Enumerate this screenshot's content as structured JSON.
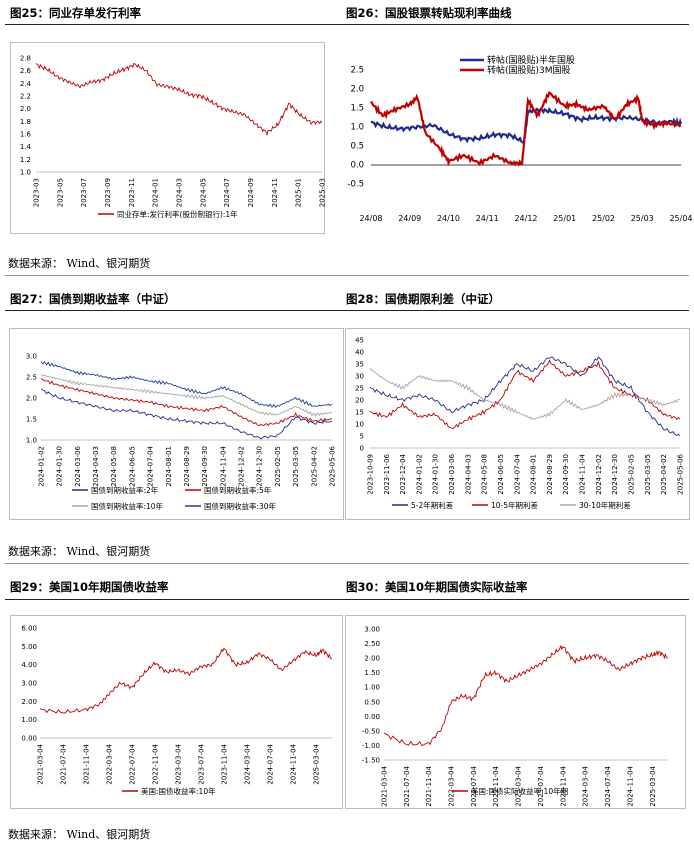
{
  "charts": [
    {
      "id": "c25",
      "title": "图25：同业存单发行利率",
      "chart_data": {
        "type": "line",
        "title": "图25：同业存单发行利率",
        "xlabel": "",
        "ylabel": "",
        "ylim": [
          1.0,
          2.8
        ],
        "yticks": [
          "2.8",
          "2.6",
          "2.4",
          "2.2",
          "2.0",
          "1.8",
          "1.6",
          "1.4",
          "1.2",
          "1.0"
        ],
        "xticks": [
          "2023-03",
          "2023-05",
          "2023-07",
          "2023-09",
          "2023-11",
          "2024-01",
          "2024-03",
          "2024-05",
          "2024-07",
          "2024-09",
          "2024-11",
          "2025-01",
          "2025-03"
        ],
        "x_index_range": [
          0,
          26
        ],
        "series": [
          {
            "name": "同业存单:发行利率(股份制银行):1年",
            "color": "#c00000",
            "x": [
              0,
              1,
              2,
              3,
              4,
              5,
              6,
              7,
              8,
              9,
              10,
              11,
              12,
              13,
              14,
              15,
              16,
              17,
              18,
              19,
              20,
              21,
              22,
              23,
              24,
              25,
              26
            ],
            "values": [
              2.7,
              2.62,
              2.5,
              2.42,
              2.35,
              2.42,
              2.45,
              2.55,
              2.62,
              2.7,
              2.6,
              2.38,
              2.35,
              2.3,
              2.22,
              2.2,
              2.1,
              2.0,
              1.95,
              1.9,
              1.75,
              1.62,
              1.75,
              2.08,
              1.9,
              1.78,
              1.79
            ]
          }
        ],
        "legend": "bottom"
      }
    },
    {
      "id": "c26",
      "title": "图26：国股银票转贴现利率曲线",
      "chart_data": {
        "type": "line",
        "title": "图26：国股银票转贴现利率曲线",
        "xlabel": "",
        "ylabel": "",
        "ylim": [
          -0.5,
          2.5
        ],
        "yticks": [
          "2.5",
          "2.0",
          "1.5",
          "1.0",
          "0.5",
          "0.0",
          "-0.5"
        ],
        "xticks": [
          "24/08",
          "24/09",
          "24/10",
          "24/11",
          "24/12",
          "25/01",
          "25/02",
          "25/03",
          "25/04"
        ],
        "x_index_range": [
          0,
          8
        ],
        "series": [
          {
            "name": "转帖(国股贴)半年国股",
            "color": "#1f2d8a",
            "x": [
              0,
              0.4,
              0.8,
              1.2,
              1.6,
              2.0,
              2.4,
              2.8,
              3.2,
              3.6,
              3.95,
              4.05,
              4.3,
              4.6,
              5.0,
              5.4,
              5.8,
              6.2,
              6.6,
              7.0,
              7.4,
              7.8,
              8.0
            ],
            "values": [
              1.12,
              1.0,
              0.95,
              1.0,
              1.05,
              0.82,
              0.68,
              0.7,
              0.8,
              0.78,
              0.6,
              1.4,
              1.45,
              1.42,
              1.35,
              1.2,
              1.25,
              1.22,
              1.25,
              1.2,
              1.1,
              1.15,
              1.08
            ]
          },
          {
            "name": "转帖(国股贴)3M国股",
            "color": "#c00000",
            "x": [
              0,
              0.3,
              0.6,
              1.0,
              1.2,
              1.4,
              1.8,
              2.0,
              2.4,
              2.8,
              3.2,
              3.6,
              3.9,
              4.05,
              4.3,
              4.6,
              5.0,
              5.3,
              5.6,
              6.0,
              6.3,
              6.6,
              6.9,
              7.0,
              7.3,
              7.6,
              8.0
            ],
            "values": [
              1.65,
              1.3,
              1.45,
              1.6,
              1.78,
              0.85,
              0.4,
              0.1,
              0.25,
              0.05,
              0.25,
              0.05,
              0.05,
              1.7,
              1.3,
              1.9,
              1.55,
              1.6,
              1.45,
              1.55,
              1.2,
              1.6,
              1.75,
              1.15,
              1.05,
              1.1,
              1.05
            ]
          }
        ],
        "legend": "top-center"
      }
    },
    {
      "id": "c27",
      "title": "图27：国债到期收益率（中证）",
      "chart_data": {
        "type": "line",
        "title": "图27：国债到期收益率（中证）",
        "xlabel": "",
        "ylabel": "",
        "ylim": [
          1.0,
          3.0
        ],
        "yticks": [
          "3.0",
          "2.5",
          "2.0",
          "1.5",
          "1.0"
        ],
        "xticks": [
          "2024-01-02",
          "2024-01-30",
          "2024-03-06",
          "2024-04-03",
          "2024-05-08",
          "2024-06-05",
          "2024-07-04",
          "2024-08-01",
          "2024-08-29",
          "2024-09-30",
          "2024-11-04",
          "2024-12-02",
          "2024-12-30",
          "2025-02-05",
          "2025-03-05",
          "2025-04-02",
          "2025-05-06"
        ],
        "x_index_range": [
          0,
          16
        ],
        "series": [
          {
            "name": "国债到期收益率:2年",
            "color": "#1f2d8a",
            "x": [
              0,
              1,
              2,
              3,
              4,
              5,
              6,
              7,
              8,
              9,
              10,
              11,
              12,
              13,
              14,
              15,
              16
            ],
            "values": [
              2.2,
              2.0,
              1.9,
              1.8,
              1.7,
              1.7,
              1.6,
              1.5,
              1.45,
              1.4,
              1.4,
              1.2,
              1.05,
              1.1,
              1.55,
              1.4,
              1.45
            ]
          },
          {
            "name": "国债到期收益率:5年",
            "color": "#c00000",
            "x": [
              0,
              1,
              2,
              3,
              4,
              5,
              6,
              7,
              8,
              9,
              10,
              11,
              12,
              13,
              14,
              15,
              16
            ],
            "values": [
              2.45,
              2.3,
              2.2,
              2.1,
              2.0,
              1.95,
              1.9,
              1.8,
              1.75,
              1.7,
              1.8,
              1.55,
              1.35,
              1.4,
              1.6,
              1.45,
              1.5
            ]
          },
          {
            "name": "国债到期收益率:10年",
            "color": "#a6a6a6",
            "x": [
              0,
              1,
              2,
              3,
              4,
              5,
              6,
              7,
              8,
              9,
              10,
              11,
              12,
              13,
              14,
              15,
              16
            ],
            "values": [
              2.55,
              2.45,
              2.35,
              2.3,
              2.25,
              2.2,
              2.15,
              2.1,
              2.05,
              2.0,
              2.05,
              1.85,
              1.65,
              1.6,
              1.8,
              1.6,
              1.65
            ]
          },
          {
            "name": "国债到期收益率:30年",
            "color": "#1f3d99",
            "x": [
              0,
              1,
              2,
              3,
              4,
              5,
              6,
              7,
              8,
              9,
              10,
              11,
              12,
              13,
              14,
              15,
              16
            ],
            "values": [
              2.85,
              2.75,
              2.6,
              2.55,
              2.45,
              2.5,
              2.4,
              2.35,
              2.2,
              2.1,
              2.25,
              2.1,
              1.85,
              1.8,
              2.0,
              1.8,
              1.85
            ]
          }
        ],
        "legend": "bottom"
      }
    },
    {
      "id": "c28",
      "title": "图28：国债期限利差（中证）",
      "chart_data": {
        "type": "line",
        "title": "图28：国债期限利差（中证）",
        "xlabel": "",
        "ylabel": "",
        "ylim": [
          0,
          45
        ],
        "yticks": [
          "45",
          "40",
          "35",
          "30",
          "25",
          "20",
          "15",
          "10",
          "5",
          "0"
        ],
        "xticks": [
          "2023-10-09",
          "2023-11-06",
          "2023-12-04",
          "2024-01-02",
          "2024-01-30",
          "2024-03-06",
          "2024-04-03",
          "2024-05-08",
          "2024-06-05",
          "2024-07-04",
          "2024-08-01",
          "2024-08-29",
          "2024-09-30",
          "2024-11-04",
          "2024-12-02",
          "2024-12-30",
          "2025-02-05",
          "2025-03-05",
          "2025-04-02",
          "2025-05-06"
        ],
        "x_index_range": [
          0,
          19
        ],
        "series": [
          {
            "name": "5-2年期利差",
            "color": "#1f2d8a",
            "x": [
              0,
              1,
              2,
              3,
              4,
              5,
              6,
              7,
              8,
              9,
              10,
              11,
              12,
              13,
              14,
              15,
              16,
              17,
              18,
              19
            ],
            "values": [
              25,
              22,
              20,
              22,
              20,
              15,
              18,
              20,
              28,
              35,
              32,
              38,
              35,
              30,
              38,
              28,
              25,
              15,
              8,
              5
            ]
          },
          {
            "name": "10-5年期利差",
            "color": "#c00000",
            "x": [
              0,
              1,
              2,
              3,
              4,
              5,
              6,
              7,
              8,
              9,
              10,
              11,
              12,
              13,
              14,
              15,
              16,
              17,
              18,
              19
            ],
            "values": [
              15,
              13,
              18,
              13,
              14,
              8,
              12,
              15,
              20,
              32,
              28,
              36,
              30,
              32,
              35,
              25,
              22,
              20,
              14,
              12
            ]
          },
          {
            "name": "30-10年期利差",
            "color": "#a6a6a6",
            "x": [
              0,
              1,
              2,
              3,
              4,
              5,
              6,
              7,
              8,
              9,
              10,
              11,
              12,
              13,
              14,
              15,
              16,
              17,
              18,
              19
            ],
            "values": [
              33,
              28,
              25,
              30,
              28,
              28,
              25,
              20,
              18,
              15,
              12,
              14,
              20,
              16,
              18,
              22,
              22,
              20,
              18,
              20
            ]
          }
        ],
        "legend": "bottom"
      }
    },
    {
      "id": "c29",
      "title": "图29：美国10年期国债收益率",
      "chart_data": {
        "type": "line",
        "title": "图29：美国10年期国债收益率",
        "xlabel": "",
        "ylabel": "",
        "ylim": [
          0,
          6
        ],
        "yticks": [
          "6.00",
          "5.00",
          "4.00",
          "3.00",
          "2.00",
          "1.00",
          "0.00"
        ],
        "xticks": [
          "2021-03-04",
          "2021-07-04",
          "2021-11-04",
          "2022-03-04",
          "2022-07-04",
          "2022-11-04",
          "2023-03-04",
          "2023-07-04",
          "2023-11-04",
          "2024-03-04",
          "2024-07-04",
          "2024-11-04",
          "2025-03-04"
        ],
        "x_index_range": [
          0,
          12.7
        ],
        "series": [
          {
            "name": "美国:国债收益率:10年",
            "color": "#c00000",
            "x": [
              0,
              1,
              2,
              2.6,
              3,
              3.5,
              4,
              4.5,
              5,
              5.5,
              6,
              6.5,
              7,
              7.5,
              8,
              8.5,
              9,
              9.5,
              10,
              10.5,
              11,
              11.5,
              12,
              12.3,
              12.7
            ],
            "values": [
              1.55,
              1.4,
              1.55,
              1.85,
              2.4,
              3.0,
              2.75,
              3.5,
              4.1,
              3.6,
              3.7,
              3.5,
              3.9,
              4.0,
              4.9,
              4.0,
              4.1,
              4.6,
              4.3,
              3.7,
              4.2,
              4.7,
              4.5,
              4.8,
              4.3
            ]
          }
        ],
        "legend": "bottom"
      }
    },
    {
      "id": "c30",
      "title": "图30：美国10年期国债实际收益率",
      "chart_data": {
        "type": "line",
        "title": "图30：美国10年期国债实际收益率",
        "xlabel": "",
        "ylabel": "",
        "ylim": [
          -1.5,
          3.0
        ],
        "yticks": [
          "3.00",
          "2.50",
          "2.00",
          "1.50",
          "1.00",
          "0.50",
          "0.00",
          "-0.50",
          "-1.00",
          "-1.50"
        ],
        "xticks": [
          "2021-03-04",
          "2021-07-04",
          "2021-11-04",
          "2022-03-04",
          "2022-07-04",
          "2022-11-04",
          "2023-03-04",
          "2023-07-04",
          "2023-11-04",
          "2024-03-04",
          "2024-07-04",
          "2024-11-04",
          "2025-03-04"
        ],
        "x_index_range": [
          0,
          12.7
        ],
        "series": [
          {
            "name": "美国:国债实际收益率:10年期",
            "color": "#c00000",
            "x": [
              0,
              1,
              2,
              2.6,
              3,
              3.5,
              4,
              4.5,
              5,
              5.5,
              6,
              6.5,
              7,
              7.5,
              8,
              8.5,
              9,
              9.5,
              10,
              10.5,
              11,
              11.5,
              12,
              12.3,
              12.7
            ],
            "values": [
              -0.6,
              -0.95,
              -0.95,
              -0.4,
              0.5,
              0.7,
              0.6,
              1.4,
              1.5,
              1.2,
              1.4,
              1.6,
              1.8,
              2.1,
              2.4,
              1.9,
              2.0,
              2.1,
              1.9,
              1.6,
              1.8,
              2.0,
              2.1,
              2.2,
              2.0
            ]
          }
        ],
        "legend": "bottom"
      }
    }
  ],
  "sources": [
    {
      "id": "s1",
      "text": "数据来源：  Wind、银河期货"
    },
    {
      "id": "s2",
      "text": "数据来源：  Wind、银河期货"
    },
    {
      "id": "s3",
      "text": "数据来源：  Wind、银河期货"
    }
  ]
}
